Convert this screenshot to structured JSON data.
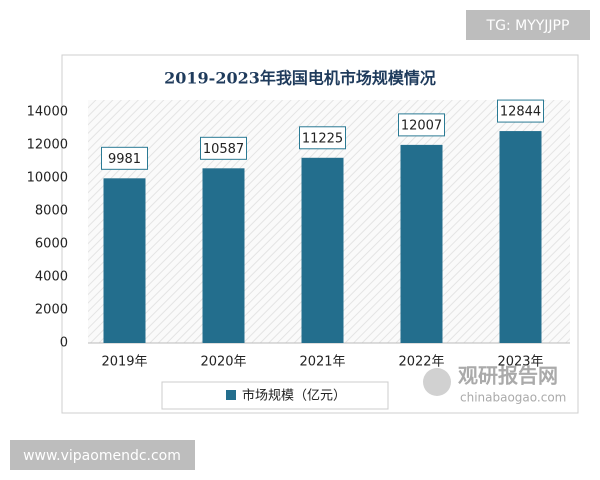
{
  "chart_data": {
    "type": "bar",
    "title": "2019-2023年我国电机市场规模情况",
    "categories": [
      "2019年",
      "2020年",
      "2021年",
      "2022年",
      "2023年"
    ],
    "series": [
      {
        "name": "市场规模（亿元）",
        "color": "#236e8d",
        "values": [
          9981,
          10587,
          11225,
          12007,
          12844
        ]
      }
    ],
    "ylim": [
      0,
      14000
    ],
    "yticks": [
      0,
      2000,
      4000,
      6000,
      8000,
      10000,
      12000,
      14000
    ],
    "grid": false,
    "legend": "bottom",
    "data_labels": true
  },
  "watermarks": {
    "top_right": "TG: MYYJJPP",
    "bottom_left": "www.vipaomendc.com",
    "logo": "观研报告网",
    "logo_url": "chinabaogao.com"
  }
}
